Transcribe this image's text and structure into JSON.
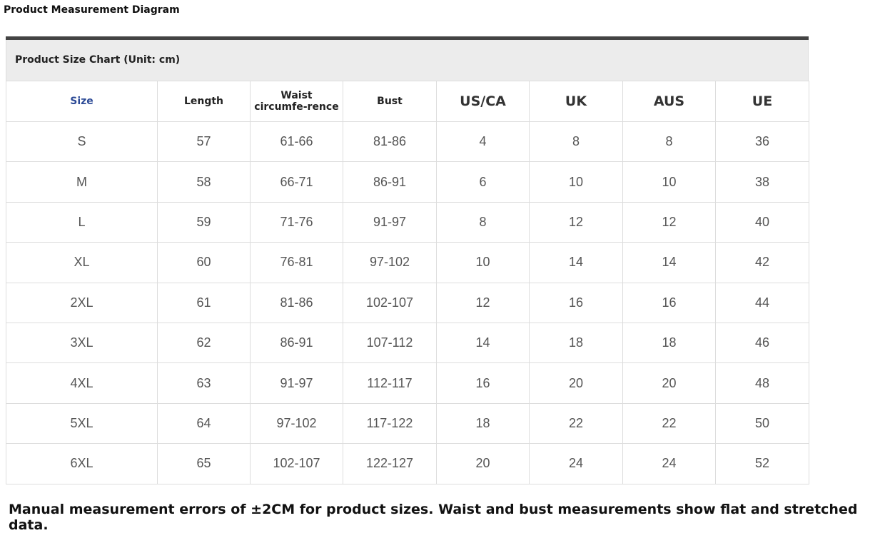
{
  "header": {
    "title": "Product Measurement Diagram"
  },
  "table": {
    "caption": "Product Size Chart (Unit: cm)",
    "columns": [
      "Size",
      "Length",
      "Waist circumfe-rence",
      "Bust",
      "US/CA",
      "UK",
      "AUS",
      "UE"
    ],
    "rows": [
      [
        "S",
        "57",
        "61-66",
        "81-86",
        "4",
        "8",
        "8",
        "36"
      ],
      [
        "M",
        "58",
        "66-71",
        "86-91",
        "6",
        "10",
        "10",
        "38"
      ],
      [
        "L",
        "59",
        "71-76",
        "91-97",
        "8",
        "12",
        "12",
        "40"
      ],
      [
        "XL",
        "60",
        "76-81",
        "97-102",
        "10",
        "14",
        "14",
        "42"
      ],
      [
        "2XL",
        "61",
        "81-86",
        "102-107",
        "12",
        "16",
        "16",
        "44"
      ],
      [
        "3XL",
        "62",
        "86-91",
        "107-112",
        "14",
        "18",
        "18",
        "46"
      ],
      [
        "4XL",
        "63",
        "91-97",
        "112-117",
        "16",
        "20",
        "20",
        "48"
      ],
      [
        "5XL",
        "64",
        "97-102",
        "117-122",
        "18",
        "22",
        "22",
        "50"
      ],
      [
        "6XL",
        "65",
        "102-107",
        "122-127",
        "20",
        "24",
        "24",
        "52"
      ]
    ]
  },
  "footer": {
    "note": "Manual measurement errors of ±2CM for product sizes. Waist and bust measurements show flat and stretched data."
  }
}
